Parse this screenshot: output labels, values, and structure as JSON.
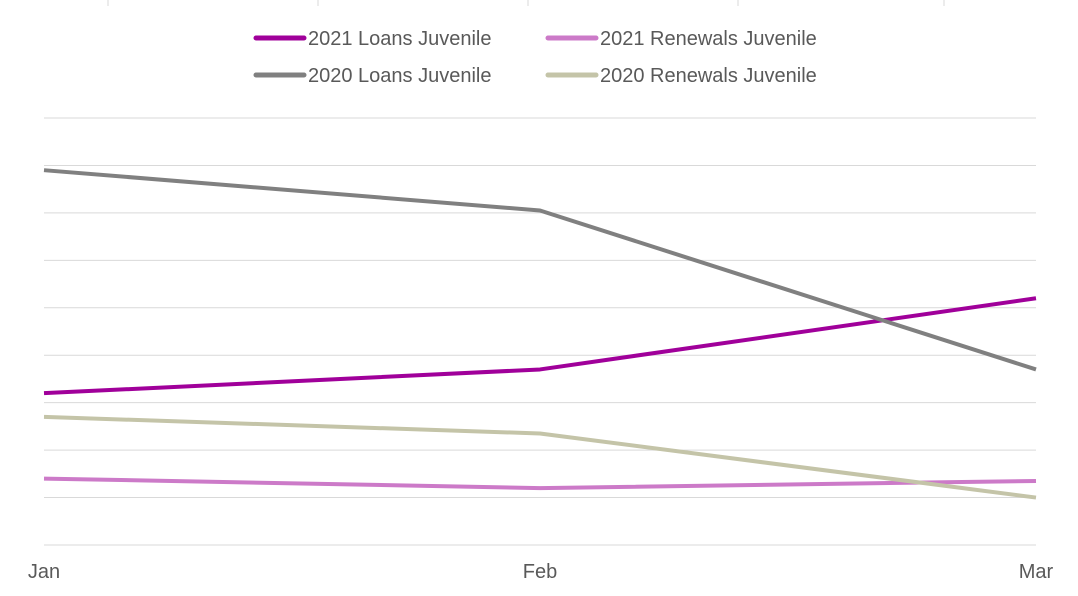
{
  "chart_data": {
    "type": "line",
    "title": "",
    "xlabel": "",
    "ylabel": "",
    "x": [
      "Jan",
      "Feb",
      "Mar"
    ],
    "ylim": [
      0,
      9
    ],
    "grid": true,
    "legend_position": "top",
    "series": [
      {
        "name": "2021 Loans Juvenile",
        "color": "#a0009a",
        "values": [
          3.2,
          3.7,
          5.2
        ]
      },
      {
        "name": "2021 Renewals Juvenile",
        "color": "#cc7ac8",
        "values": [
          1.4,
          1.2,
          1.35
        ]
      },
      {
        "name": "2020 Loans Juvenile",
        "color": "#808080",
        "values": [
          7.9,
          7.05,
          3.7
        ]
      },
      {
        "name": "2020 Renewals Juvenile",
        "color": "#c4c4a8",
        "values": [
          2.7,
          2.35,
          1.0
        ]
      }
    ]
  }
}
